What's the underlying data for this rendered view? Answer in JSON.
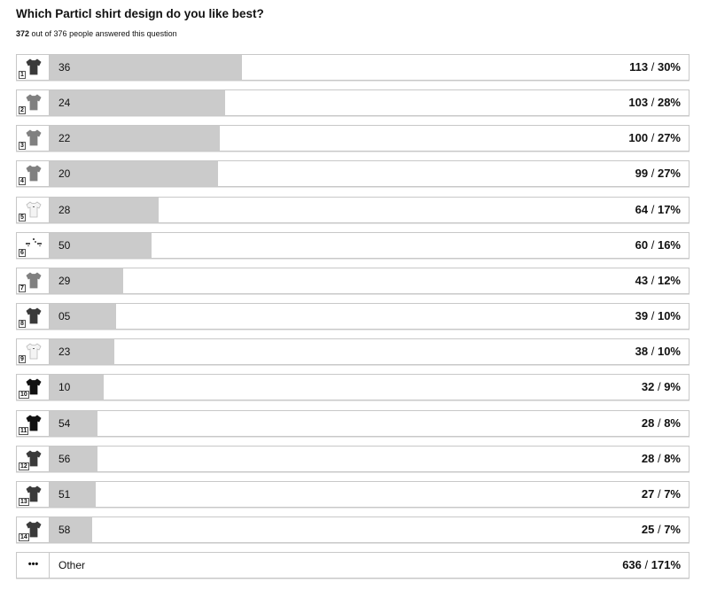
{
  "chart_data": {
    "type": "bar",
    "title": "Which Particl shirt design do you like best?",
    "answered": "372",
    "total": "376",
    "subtitle_text": " out of 376 people answered this question",
    "xlim": [
      0,
      376
    ],
    "colors": {
      "bar": "#cbcbcb",
      "border": "#c8c8c8"
    },
    "rows": [
      {
        "rank": "1",
        "label": "36",
        "count": 113,
        "count_text": "113",
        "percent_text": "30%",
        "shirt": "dark"
      },
      {
        "rank": "2",
        "label": "24",
        "count": 103,
        "count_text": "103",
        "percent_text": "28%",
        "shirt": "grey"
      },
      {
        "rank": "3",
        "label": "22",
        "count": 100,
        "count_text": "100",
        "percent_text": "27%",
        "shirt": "grey"
      },
      {
        "rank": "4",
        "label": "20",
        "count": 99,
        "count_text": "99",
        "percent_text": "27%",
        "shirt": "grey"
      },
      {
        "rank": "5",
        "label": "28",
        "count": 64,
        "count_text": "64",
        "percent_text": "17%",
        "shirt": "white"
      },
      {
        "rank": "6",
        "label": "50",
        "count": 60,
        "count_text": "60",
        "percent_text": "16%",
        "shirt": "pattern"
      },
      {
        "rank": "7",
        "label": "29",
        "count": 43,
        "count_text": "43",
        "percent_text": "12%",
        "shirt": "grey"
      },
      {
        "rank": "8",
        "label": "05",
        "count": 39,
        "count_text": "39",
        "percent_text": "10%",
        "shirt": "dark"
      },
      {
        "rank": "9",
        "label": "23",
        "count": 38,
        "count_text": "38",
        "percent_text": "10%",
        "shirt": "white"
      },
      {
        "rank": "10",
        "label": "10",
        "count": 32,
        "count_text": "32",
        "percent_text": "9%",
        "shirt": "black"
      },
      {
        "rank": "11",
        "label": "54",
        "count": 28,
        "count_text": "28",
        "percent_text": "8%",
        "shirt": "black"
      },
      {
        "rank": "12",
        "label": "56",
        "count": 28,
        "count_text": "28",
        "percent_text": "8%",
        "shirt": "dark"
      },
      {
        "rank": "13",
        "label": "51",
        "count": 27,
        "count_text": "27",
        "percent_text": "7%",
        "shirt": "dark"
      },
      {
        "rank": "14",
        "label": "58",
        "count": 25,
        "count_text": "25",
        "percent_text": "7%",
        "shirt": "dark"
      },
      {
        "rank": "",
        "label": "Other",
        "count": 0,
        "count_text": "636",
        "percent_text": "171%",
        "shirt": "ellipsis",
        "dots_text": "•••"
      }
    ]
  }
}
